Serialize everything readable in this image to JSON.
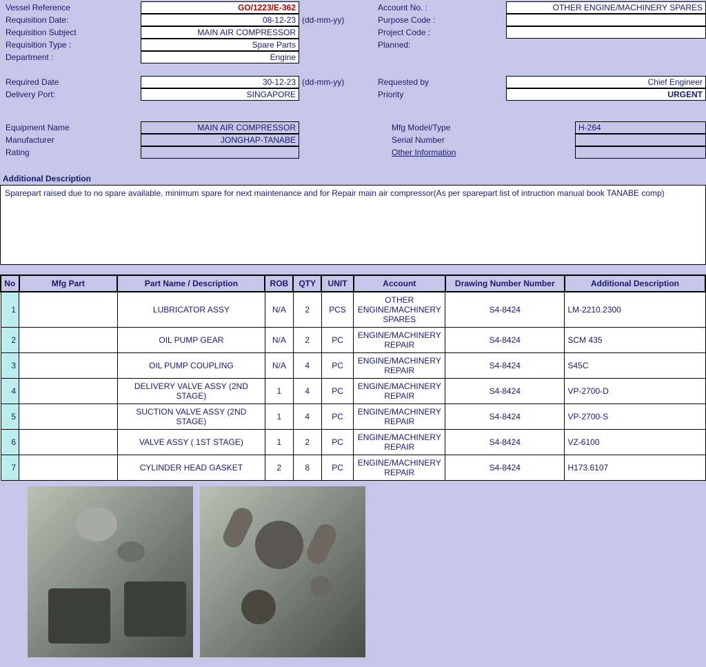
{
  "header": {
    "labels": {
      "vessel_reference": "Vessel Reference",
      "requisition_date": "Requisition Date:",
      "requisition_subject": "Requisition Subject",
      "requisition_type": "Requisition Type :",
      "department": "Department :",
      "required_date": "Required Date",
      "delivery_port": "Delivery Port:",
      "account_no": "Account No. :",
      "purpose_code": "Purpose Code :",
      "project_code": "Project Code :",
      "planned": "Planned:",
      "requested_by": "Requested by",
      "priority": "Priority",
      "date_hint": "(dd-mm-yy)"
    },
    "values": {
      "vessel_reference": "GO/1223/E-362",
      "requisition_date": "08-12-23",
      "requisition_subject": "MAIN AIR COMPRESSOR",
      "requisition_type": "Spare Parts",
      "department": "Engine",
      "required_date": "30-12-23",
      "delivery_port": "SINGAPORE",
      "account_no": "OTHER ENGINE/MACHINERY SPARES",
      "purpose_code": "",
      "project_code": "",
      "planned": "",
      "requested_by": "Chief Engineer",
      "priority": "URGENT"
    }
  },
  "equipment": {
    "labels": {
      "equipment_name": "Equipment Name",
      "manufacturer": "Manufacturer",
      "rating": "Rating",
      "mfg_model": "Mfg Model/Type",
      "serial_number": "Serial Number",
      "other_info": "Other Information"
    },
    "values": {
      "equipment_name": "MAIN AIR COMPRESSOR",
      "manufacturer": "JONGHAP-TANABE",
      "rating": "",
      "mfg_model": "H-264",
      "serial_number": "",
      "other_info": ""
    }
  },
  "additional": {
    "title": "Additional Description",
    "text": "Sparepart raised due to no spare available, minimum spare for next maintenance and for Repair main air compressor(As per sparepart list of intruction manual book TANABE comp)"
  },
  "parts_table": {
    "columns": [
      "No",
      "Mfg Part",
      "Part Name / Description",
      "ROB",
      "QTY",
      "UNIT",
      "Account",
      "Drawing Number Number",
      "Additional Description"
    ],
    "rows": [
      {
        "no": "1",
        "mfg": "",
        "name": "LUBRICATOR ASSY",
        "rob": "N/A",
        "qty": "2",
        "unit": "PCS",
        "account": "OTHER ENGINE/MACHINERY SPARES",
        "drawing": "S4-8424",
        "addl": "LM-2210.2300"
      },
      {
        "no": "2",
        "mfg": "",
        "name": "OIL PUMP GEAR",
        "rob": "N/A",
        "qty": "2",
        "unit": "PC",
        "account": "ENGINE/MACHINERY REPAIR",
        "drawing": "S4-8424",
        "addl": "SCM 435"
      },
      {
        "no": "3",
        "mfg": "",
        "name": "OIL PUMP COUPLING",
        "rob": "N/A",
        "qty": "4",
        "unit": "PC",
        "account": "ENGINE/MACHINERY REPAIR",
        "drawing": "S4-8424",
        "addl": "S45C"
      },
      {
        "no": "4",
        "mfg": "",
        "name": "DELIVERY VALVE ASSY (2ND STAGE)",
        "rob": "1",
        "qty": "4",
        "unit": "PC",
        "account": "ENGINE/MACHINERY REPAIR",
        "drawing": "S4-8424",
        "addl": "VP-2700-D"
      },
      {
        "no": "5",
        "mfg": "",
        "name": "SUCTION VALVE ASSY (2ND STAGE)",
        "rob": "1",
        "qty": "4",
        "unit": "PC",
        "account": "ENGINE/MACHINERY REPAIR",
        "drawing": "S4-8424",
        "addl": "VP-2700-S"
      },
      {
        "no": "6",
        "mfg": "",
        "name": "VALVE ASSY ( 1ST STAGE)",
        "rob": "1",
        "qty": "2",
        "unit": "PC",
        "account": "ENGINE/MACHINERY REPAIR",
        "drawing": "S4-8424",
        "addl": "VZ-6100"
      },
      {
        "no": "7",
        "mfg": "",
        "name": "CYLINDER HEAD GASKET",
        "rob": "2",
        "qty": "8",
        "unit": "PC",
        "account": "ENGINE/MACHINERY REPAIR",
        "drawing": "S4-8424",
        "addl": "H173.6107"
      }
    ]
  },
  "style": {
    "bg": "#c5c6e8",
    "text_color": "#1a1a6a",
    "vessel_ref_color": "#b00000",
    "no_cell_bg": "#bdeeee",
    "border_color": "#000000",
    "font_family": "Verdana",
    "font_size_pt": 9
  }
}
